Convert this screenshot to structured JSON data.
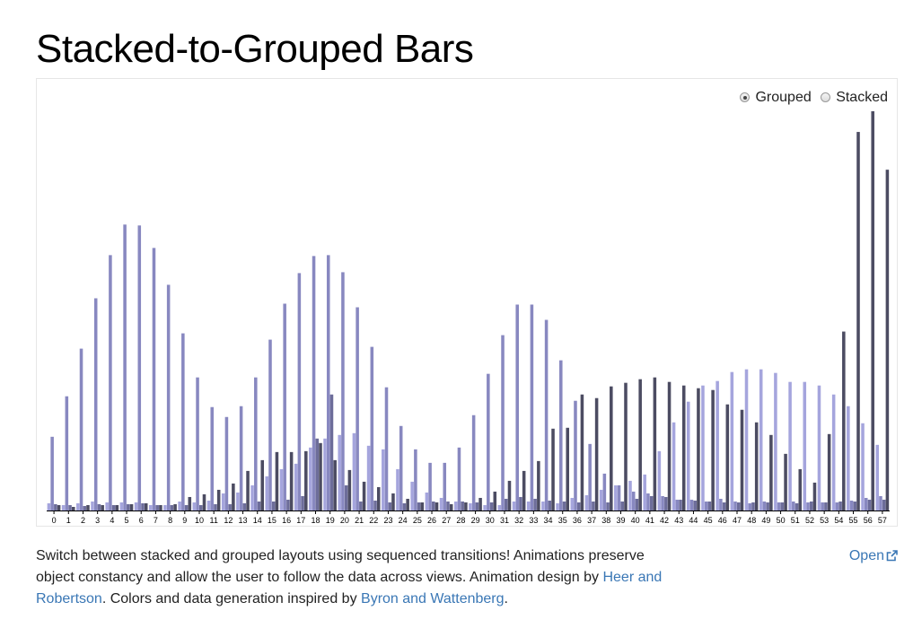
{
  "page": {
    "title": "Stacked-to-Grouped Bars",
    "description": {
      "text1": "Switch between stacked and grouped layouts using sequenced transitions! Animations preserve object constancy and allow the user to follow the data across views. Animation design by ",
      "link1": "Heer and Robertson",
      "text2": ". Colors and data generation inspired by ",
      "link2": "Byron and Wattenberg",
      "text3": "."
    },
    "open_link": "Open"
  },
  "controls": {
    "grouped_label": "Grouped",
    "stacked_label": "Stacked",
    "selected": "Grouped"
  },
  "colors": {
    "series": [
      "#a5a5dd",
      "#8888c0",
      "#6d6d9a",
      "#4c4c62"
    ],
    "axis": "#000000"
  },
  "chart_data": {
    "type": "bar",
    "mode": "grouped",
    "title": "",
    "xlabel": "",
    "ylabel": "",
    "categories": [
      "0",
      "1",
      "2",
      "3",
      "4",
      "5",
      "6",
      "7",
      "8",
      "9",
      "10",
      "11",
      "12",
      "13",
      "14",
      "15",
      "16",
      "17",
      "18",
      "19",
      "20",
      "21",
      "22",
      "23",
      "24",
      "25",
      "26",
      "27",
      "28",
      "29",
      "30",
      "31",
      "32",
      "33",
      "34",
      "35",
      "36",
      "37",
      "38",
      "39",
      "40",
      "41",
      "42",
      "43",
      "44",
      "45",
      "46",
      "47",
      "48",
      "49",
      "50",
      "51",
      "52",
      "53",
      "54",
      "55",
      "56",
      "57"
    ],
    "ylim": [
      0,
      4.5
    ],
    "grid": false,
    "legend": "none",
    "series": [
      {
        "values": [
          0.08,
          0.06,
          0.08,
          0.1,
          0.09,
          0.09,
          0.09,
          0.06,
          0.06,
          0.1,
          0.09,
          0.11,
          0.19,
          0.2,
          0.28,
          0.38,
          0.46,
          0.52,
          0.7,
          0.8,
          0.84,
          0.86,
          0.72,
          0.68,
          0.46,
          0.32,
          0.2,
          0.14,
          0.1,
          0.08,
          0.06,
          0.06,
          0.1,
          0.1,
          0.1,
          0.08,
          0.14,
          0.17,
          0.23,
          0.28,
          0.33,
          0.4,
          0.66,
          0.98,
          1.21,
          1.39,
          1.44,
          1.54,
          1.57,
          1.57,
          1.53,
          1.43,
          1.43,
          1.39,
          1.29,
          1.16,
          0.97,
          0.73
        ]
      },
      {
        "values": [
          0.82,
          1.27,
          1.8,
          2.36,
          2.84,
          3.18,
          3.17,
          2.92,
          2.51,
          1.97,
          1.48,
          1.15,
          1.04,
          1.16,
          1.48,
          1.9,
          2.3,
          2.64,
          2.83,
          2.84,
          2.65,
          2.26,
          1.82,
          1.37,
          0.94,
          0.68,
          0.53,
          0.53,
          0.7,
          1.06,
          1.52,
          1.95,
          2.29,
          2.29,
          2.12,
          1.67,
          1.22,
          0.74,
          0.41,
          0.28,
          0.21,
          0.19,
          0.16,
          0.12,
          0.12,
          0.1,
          0.13,
          0.1,
          0.08,
          0.1,
          0.09,
          0.1,
          0.09,
          0.09,
          0.09,
          0.11,
          0.14,
          0.16
        ]
      },
      {
        "values": [
          0.07,
          0.06,
          0.05,
          0.07,
          0.06,
          0.07,
          0.08,
          0.06,
          0.06,
          0.06,
          0.06,
          0.07,
          0.07,
          0.08,
          0.1,
          0.1,
          0.12,
          0.16,
          0.8,
          1.29,
          0.28,
          0.1,
          0.11,
          0.09,
          0.08,
          0.09,
          0.1,
          0.1,
          0.1,
          0.09,
          0.09,
          0.13,
          0.15,
          0.13,
          0.11,
          0.1,
          0.09,
          0.1,
          0.09,
          0.1,
          0.13,
          0.16,
          0.15,
          0.12,
          0.11,
          0.1,
          0.09,
          0.09,
          0.09,
          0.09,
          0.09,
          0.08,
          0.1,
          0.09,
          0.1,
          0.1,
          0.12,
          0.12
        ]
      },
      {
        "values": [
          0.06,
          0.04,
          0.06,
          0.06,
          0.06,
          0.07,
          0.08,
          0.06,
          0.07,
          0.15,
          0.18,
          0.23,
          0.3,
          0.44,
          0.56,
          0.65,
          0.65,
          0.66,
          0.75,
          0.56,
          0.45,
          0.32,
          0.26,
          0.19,
          0.13,
          0.09,
          0.09,
          0.07,
          0.09,
          0.14,
          0.21,
          0.33,
          0.44,
          0.55,
          0.91,
          0.92,
          1.29,
          1.25,
          1.38,
          1.42,
          1.46,
          1.48,
          1.43,
          1.39,
          1.36,
          1.34,
          1.18,
          1.12,
          0.98,
          0.84,
          0.63,
          0.46,
          0.31,
          0.85,
          1.99,
          4.21,
          4.44,
          3.79
        ]
      }
    ]
  }
}
